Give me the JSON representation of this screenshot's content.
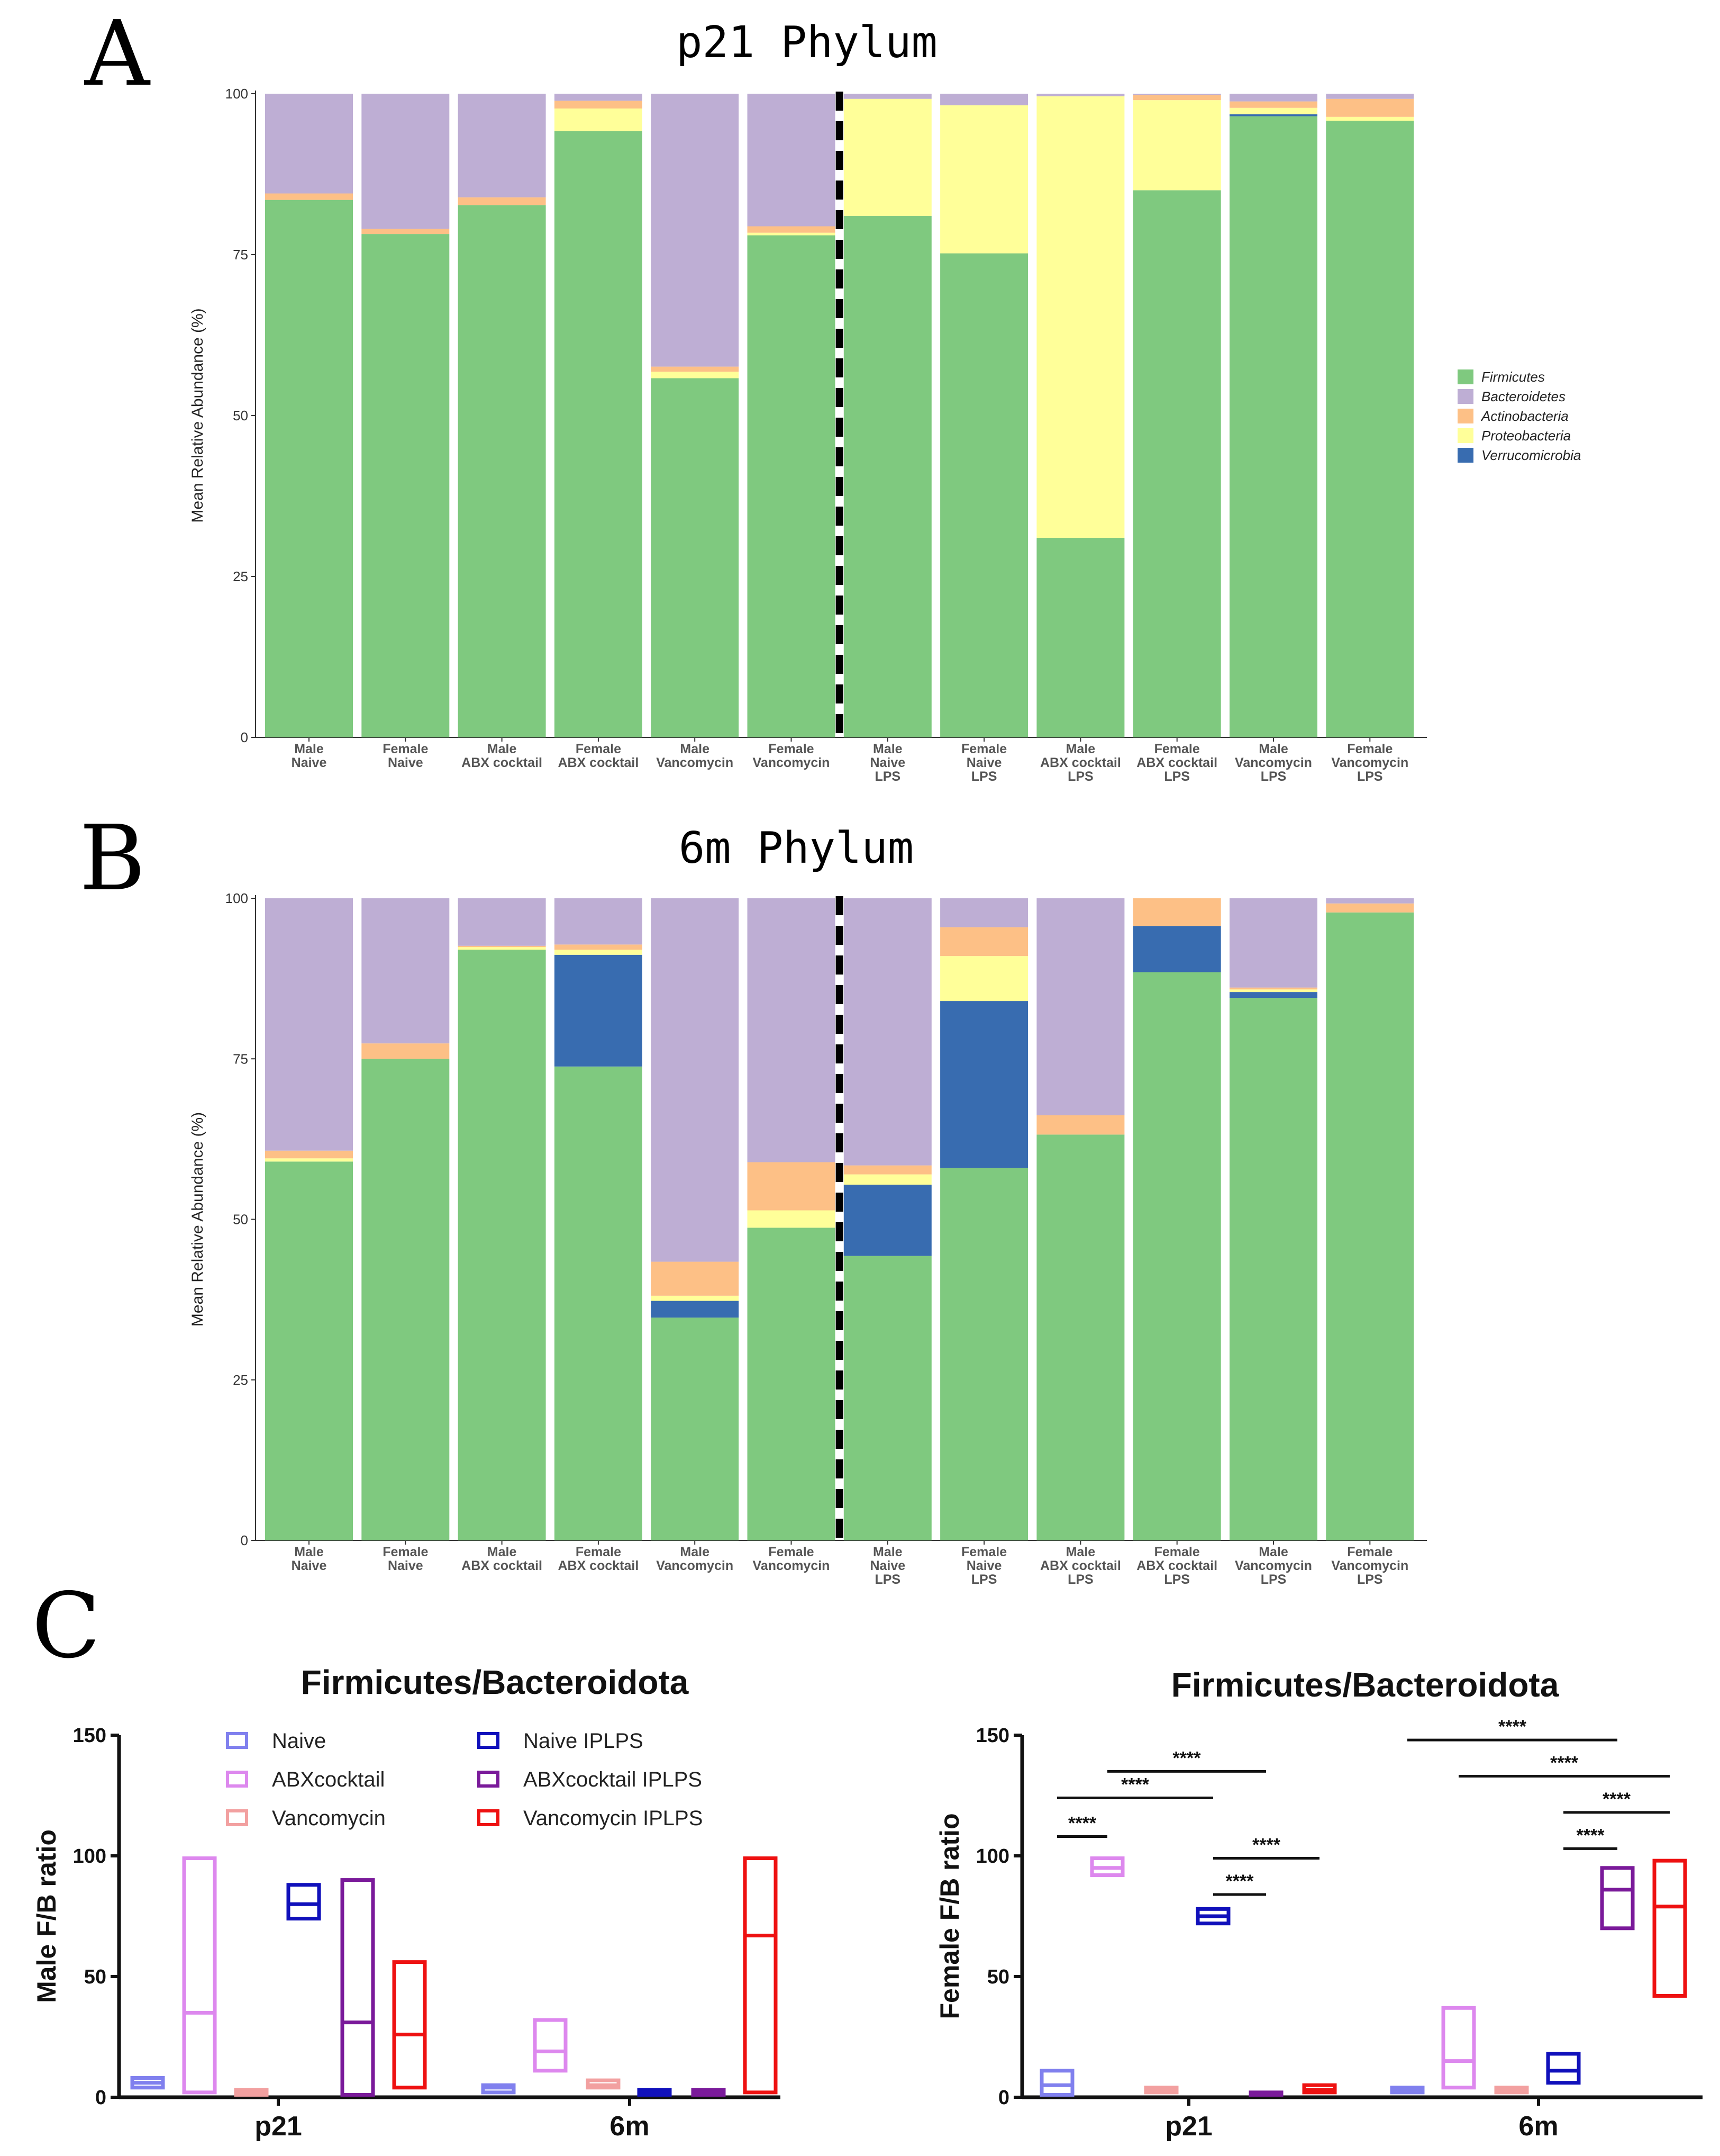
{
  "panels": {
    "a_letter": "A",
    "b_letter": "B",
    "c_letter": "C"
  },
  "colors": {
    "Firmicutes": "#7fc97f",
    "Bacteroidetes": "#beaed4",
    "Actinobacteria": "#fdc086",
    "Proteobacteria": "#ffff99",
    "Verrucomicrobia": "#386cb0"
  },
  "chart_data": [
    {
      "id": "A",
      "type": "bar",
      "stacked": true,
      "title": "p21 Phylum",
      "ylabel": "Mean Relative Abundance (%)",
      "xlabel": "",
      "ylim": [
        0,
        100
      ],
      "yticks": [
        "0",
        "25",
        "50",
        "75",
        "100"
      ],
      "divider_after_index": 5,
      "categories": [
        [
          "Male",
          "Naive"
        ],
        [
          "Female",
          "Naive"
        ],
        [
          "Male",
          "ABX cocktail"
        ],
        [
          "Female",
          "ABX cocktail"
        ],
        [
          "Male",
          "Vancomycin"
        ],
        [
          "Female",
          "Vancomycin"
        ],
        [
          "Male",
          "Naive",
          "LPS"
        ],
        [
          "Female",
          "Naive",
          "LPS"
        ],
        [
          "Male",
          "ABX cocktail",
          "LPS"
        ],
        [
          "Female",
          "ABX cocktail",
          "LPS"
        ],
        [
          "Male",
          "Vancomycin",
          "LPS"
        ],
        [
          "Female",
          "Vancomycin",
          "LPS"
        ]
      ],
      "series": [
        {
          "name": "Firmicutes",
          "values": [
            83.5,
            78.2,
            82.7,
            94.2,
            55.8,
            78.0,
            81.0,
            75.2,
            31.0,
            85.0,
            96.5,
            95.8
          ]
        },
        {
          "name": "Verrucomicrobia",
          "values": [
            0,
            0,
            0,
            0,
            0,
            0,
            0,
            0,
            0,
            0,
            0.3,
            0
          ]
        },
        {
          "name": "Proteobacteria",
          "values": [
            0,
            0,
            0,
            3.5,
            1.0,
            0.4,
            18.2,
            23.0,
            68.6,
            14.0,
            1.0,
            0.6
          ]
        },
        {
          "name": "Actinobacteria",
          "values": [
            1.0,
            0.8,
            1.2,
            1.2,
            0.8,
            1.0,
            0,
            0,
            0,
            0.8,
            1.0,
            2.8
          ]
        },
        {
          "name": "Bacteroidetes",
          "values": [
            15.5,
            21.0,
            16.1,
            1.1,
            42.4,
            20.6,
            0.8,
            1.8,
            0.4,
            0.2,
            1.2,
            0.8
          ]
        }
      ],
      "legend": {
        "position": "right",
        "entries": [
          "Firmicutes",
          "Bacteroidetes",
          "Actinobacteria",
          "Proteobacteria",
          "Verrucomicrobia"
        ]
      }
    },
    {
      "id": "B",
      "type": "bar",
      "stacked": true,
      "title": "6m Phylum",
      "ylabel": "Mean Relative Abundance (%)",
      "xlabel": "",
      "ylim": [
        0,
        100
      ],
      "yticks": [
        "0",
        "25",
        "50",
        "75",
        "100"
      ],
      "divider_after_index": 5,
      "categories": [
        [
          "Male",
          "Naive"
        ],
        [
          "Female",
          "Naive"
        ],
        [
          "Male",
          "ABX cocktail"
        ],
        [
          "Female",
          "ABX cocktail"
        ],
        [
          "Male",
          "Vancomycin"
        ],
        [
          "Female",
          "Vancomycin"
        ],
        [
          "Male",
          "Naive",
          "LPS"
        ],
        [
          "Female",
          "Naive",
          "LPS"
        ],
        [
          "Male",
          "ABX cocktail",
          "LPS"
        ],
        [
          "Female",
          "ABX cocktail",
          "LPS"
        ],
        [
          "Male",
          "Vancomycin",
          "LPS"
        ],
        [
          "Female",
          "Vancomycin",
          "LPS"
        ]
      ],
      "series": [
        {
          "name": "Firmicutes",
          "values": [
            59.0,
            75.0,
            92.0,
            73.8,
            34.7,
            48.7,
            44.3,
            58.0,
            63.2,
            88.5,
            84.5,
            97.8
          ]
        },
        {
          "name": "Verrucomicrobia",
          "values": [
            0,
            0,
            0,
            17.4,
            2.6,
            0,
            11.1,
            26.0,
            0,
            7.2,
            0.9,
            0
          ]
        },
        {
          "name": "Proteobacteria",
          "values": [
            0.5,
            0,
            0.4,
            0.8,
            0.8,
            2.7,
            1.6,
            7.0,
            0,
            0,
            0.4,
            0
          ]
        },
        {
          "name": "Actinobacteria",
          "values": [
            1.2,
            2.4,
            0.2,
            0.8,
            5.3,
            7.5,
            1.4,
            4.5,
            3.0,
            4.3,
            0.3,
            1.4
          ]
        },
        {
          "name": "Bacteroidetes",
          "values": [
            39.3,
            22.6,
            7.4,
            7.2,
            56.6,
            41.1,
            41.6,
            4.5,
            33.8,
            0,
            13.9,
            0.8
          ]
        }
      ]
    },
    {
      "id": "C-male",
      "type": "box",
      "title": "Firmicutes/Bacteroidota",
      "ylabel": "Male F/B ratio",
      "ylim": [
        0,
        150
      ],
      "yticks": [
        "0",
        "50",
        "100",
        "150"
      ],
      "groups": [
        "p21",
        "6m"
      ],
      "boxes": [
        {
          "group": "p21",
          "series": "Naive",
          "min": 4,
          "median": 6,
          "max": 8
        },
        {
          "group": "p21",
          "series": "ABXcocktail",
          "min": 2,
          "median": 35,
          "max": 99
        },
        {
          "group": "p21",
          "series": "Vancomycin",
          "min": 1,
          "median": 2,
          "max": 3
        },
        {
          "group": "p21",
          "series": "Naive IPLPS",
          "min": 74,
          "median": 80,
          "max": 88
        },
        {
          "group": "p21",
          "series": "ABXcocktail IPLPS",
          "min": 1,
          "median": 31,
          "max": 90
        },
        {
          "group": "p21",
          "series": "Vancomycin IPLPS",
          "min": 4,
          "median": 26,
          "max": 56
        },
        {
          "group": "6m",
          "series": "Naive",
          "min": 2,
          "median": 4,
          "max": 5
        },
        {
          "group": "6m",
          "series": "ABXcocktail",
          "min": 11,
          "median": 19,
          "max": 32
        },
        {
          "group": "6m",
          "series": "Vancomycin",
          "min": 4,
          "median": 5,
          "max": 7
        },
        {
          "group": "6m",
          "series": "Naive IPLPS",
          "min": 1,
          "median": 2,
          "max": 3
        },
        {
          "group": "6m",
          "series": "ABXcocktail IPLPS",
          "min": 1,
          "median": 2,
          "max": 3
        },
        {
          "group": "6m",
          "series": "Vancomycin IPLPS",
          "min": 2,
          "median": 67,
          "max": 99
        }
      ],
      "legend": [
        {
          "name": "Naive",
          "color": "#8080ee"
        },
        {
          "name": "ABXcocktail",
          "color": "#dd88ee"
        },
        {
          "name": "Vancomycin",
          "color": "#f2a0a0"
        },
        {
          "name": "Naive IPLPS",
          "color": "#1010bb"
        },
        {
          "name": "ABXcocktail IPLPS",
          "color": "#7a1a9a"
        },
        {
          "name": "Vancomycin IPLPS",
          "color": "#ee1111"
        }
      ]
    },
    {
      "id": "C-female",
      "type": "box",
      "title": "Firmicutes/Bacteroidota",
      "ylabel": "Female F/B ratio",
      "ylim": [
        0,
        150
      ],
      "yticks": [
        "0",
        "50",
        "100",
        "150"
      ],
      "groups": [
        "p21",
        "6m"
      ],
      "boxes": [
        {
          "group": "p21",
          "series": "Naive",
          "min": 1,
          "median": 5,
          "max": 11
        },
        {
          "group": "p21",
          "series": "ABXcocktail",
          "min": 92,
          "median": 95,
          "max": 99
        },
        {
          "group": "p21",
          "series": "Vancomycin",
          "min": 2,
          "median": 3,
          "max": 4
        },
        {
          "group": "p21",
          "series": "Naive IPLPS",
          "min": 72,
          "median": 75,
          "max": 78
        },
        {
          "group": "p21",
          "series": "ABXcocktail IPLPS",
          "min": 1,
          "median": 1.5,
          "max": 2
        },
        {
          "group": "p21",
          "series": "Vancomycin IPLPS",
          "min": 2,
          "median": 3,
          "max": 5
        },
        {
          "group": "6m",
          "series": "Naive",
          "min": 2,
          "median": 3,
          "max": 4
        },
        {
          "group": "6m",
          "series": "ABXcocktail",
          "min": 4,
          "median": 15,
          "max": 37
        },
        {
          "group": "6m",
          "series": "Vancomycin",
          "min": 2,
          "median": 3,
          "max": 4
        },
        {
          "group": "6m",
          "series": "Naive IPLPS",
          "min": 6,
          "median": 11,
          "max": 18
        },
        {
          "group": "6m",
          "series": "ABXcocktail IPLPS",
          "min": 70,
          "median": 86,
          "max": 95
        },
        {
          "group": "6m",
          "series": "Vancomycin IPLPS",
          "min": 42,
          "median": 79,
          "max": 98
        }
      ],
      "significance": [
        {
          "label": "****",
          "y": 108,
          "from": {
            "group": "p21",
            "series": "Naive"
          },
          "to": {
            "group": "p21",
            "series": "ABXcocktail"
          }
        },
        {
          "label": "****",
          "y": 124,
          "from": {
            "group": "p21",
            "series": "Naive"
          },
          "to": {
            "group": "p21",
            "series": "Naive IPLPS"
          }
        },
        {
          "label": "****",
          "y": 135,
          "from": {
            "group": "p21",
            "series": "ABXcocktail"
          },
          "to": {
            "group": "p21",
            "series": "ABXcocktail IPLPS"
          }
        },
        {
          "label": "****",
          "y": 84,
          "from": {
            "group": "p21",
            "series": "Naive IPLPS"
          },
          "to": {
            "group": "p21",
            "series": "ABXcocktail IPLPS"
          }
        },
        {
          "label": "****",
          "y": 99,
          "from": {
            "group": "p21",
            "series": "Naive IPLPS"
          },
          "to": {
            "group": "p21",
            "series": "Vancomycin IPLPS"
          }
        },
        {
          "label": "****",
          "y": 148,
          "from": {
            "group": "6m",
            "series": "Naive"
          },
          "to": {
            "group": "6m",
            "series": "ABXcocktail IPLPS"
          }
        },
        {
          "label": "****",
          "y": 133,
          "from": {
            "group": "6m",
            "series": "ABXcocktail"
          },
          "to": {
            "group": "6m",
            "series": "Vancomycin IPLPS"
          }
        },
        {
          "label": "****",
          "y": 118,
          "from": {
            "group": "6m",
            "series": "Naive IPLPS"
          },
          "to": {
            "group": "6m",
            "series": "Vancomycin IPLPS"
          }
        },
        {
          "label": "****",
          "y": 103,
          "from": {
            "group": "6m",
            "series": "Naive IPLPS"
          },
          "to": {
            "group": "6m",
            "series": "ABXcocktail IPLPS"
          }
        }
      ]
    }
  ]
}
